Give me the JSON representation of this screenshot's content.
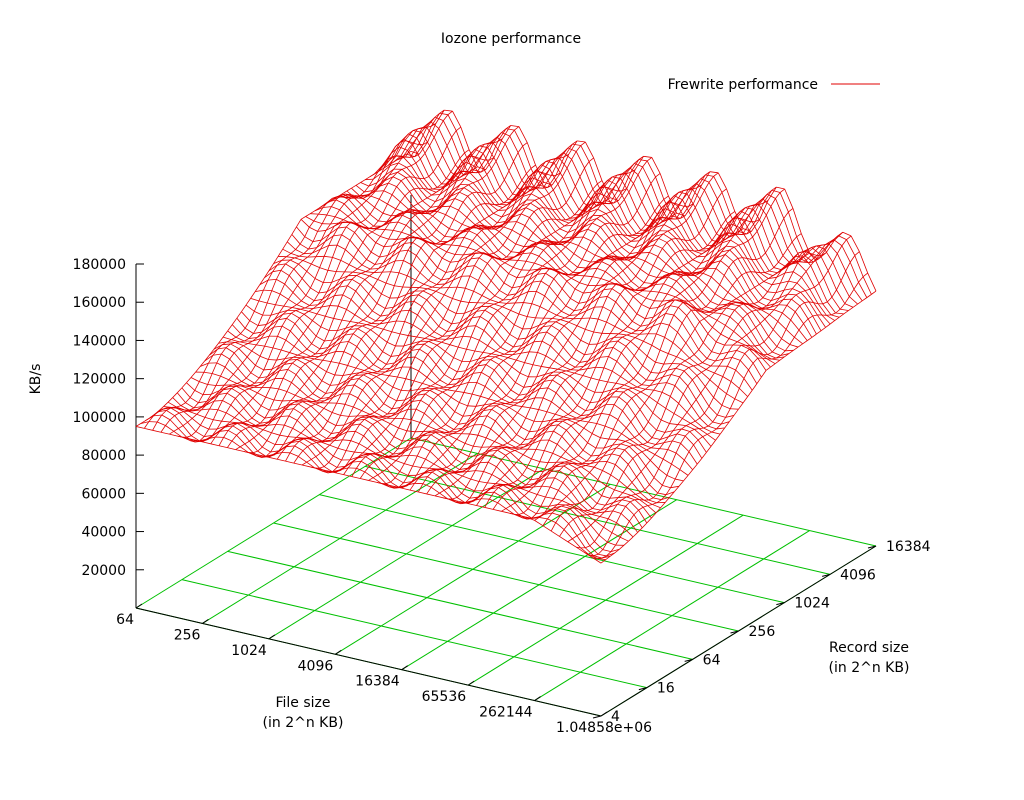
{
  "chart_data": {
    "type": "surface",
    "title": "Iozone performance",
    "legend": {
      "label": "Frewrite performance",
      "color": "#e00000",
      "placement": "top-right"
    },
    "zlabel": "KB/s",
    "xlabel_lines": [
      "File size",
      "(in 2^n KB)"
    ],
    "ylabel_lines": [
      "Record size",
      "(in 2^n KB)"
    ],
    "z_ticks": [
      "20000",
      "40000",
      "60000",
      "80000",
      "100000",
      "120000",
      "140000",
      "160000",
      "180000"
    ],
    "x_ticks": [
      "64",
      "256",
      "1024",
      "4096",
      "16384",
      "65536",
      "262144",
      "1.04858e+06"
    ],
    "y_ticks": [
      "4",
      "16",
      "64",
      "256",
      "1024",
      "4096",
      "16384"
    ],
    "zlim": [
      0,
      180000
    ],
    "grid_color": "#00c000",
    "surface_color": "#e00000",
    "series": [
      {
        "x": "file size (log2 KB)",
        "y": "record size (log2 KB)",
        "x_range": [
          6,
          20
        ],
        "y_range": [
          2,
          14
        ],
        "baseline_z": 95000,
        "plateau_z": 150000,
        "peak_z": 182000,
        "ridge_peaks_at_file_size": [
          "256",
          "1024",
          "4096",
          "16384",
          "65536",
          "262144",
          "1.04858e+06"
        ]
      }
    ]
  }
}
